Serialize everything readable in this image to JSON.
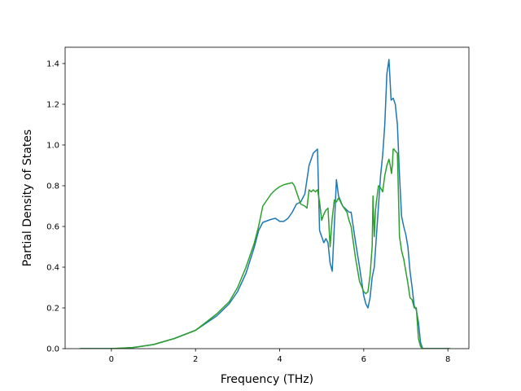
{
  "chart_data": {
    "type": "line",
    "title": "",
    "xlabel": "Frequency (THz)",
    "ylabel": "Partial Density of States",
    "xlim": [
      -1.1,
      8.5
    ],
    "ylim": [
      0.0,
      1.48
    ],
    "xticks": [
      0,
      2,
      4,
      6,
      8
    ],
    "xtick_labels": [
      "0",
      "2",
      "4",
      "6",
      "8"
    ],
    "yticks": [
      0.0,
      0.2,
      0.4,
      0.6,
      0.8,
      1.0,
      1.2,
      1.4
    ],
    "ytick_labels": [
      "0.0",
      "0.2",
      "0.4",
      "0.6",
      "0.8",
      "1.0",
      "1.2",
      "1.4"
    ],
    "grid": false,
    "legend": false,
    "series": [
      {
        "color": "#1f77b4",
        "x": [
          -0.75,
          0.0,
          0.5,
          1.0,
          1.5,
          2.0,
          2.5,
          2.8,
          3.0,
          3.2,
          3.4,
          3.5,
          3.6,
          3.8,
          3.9,
          4.0,
          4.1,
          4.2,
          4.3,
          4.4,
          4.5,
          4.6,
          4.7,
          4.8,
          4.85,
          4.9,
          4.95,
          5.0,
          5.05,
          5.1,
          5.15,
          5.2,
          5.25,
          5.3,
          5.35,
          5.4,
          5.5,
          5.6,
          5.65,
          5.7,
          5.8,
          5.9,
          6.0,
          6.05,
          6.1,
          6.15,
          6.2,
          6.25,
          6.3,
          6.35,
          6.4,
          6.45,
          6.5,
          6.55,
          6.6,
          6.65,
          6.7,
          6.75,
          6.8,
          6.85,
          6.9,
          6.95,
          7.0,
          7.05,
          7.1,
          7.15,
          7.2,
          7.25,
          7.3,
          7.35,
          7.4,
          7.5,
          8.05
        ],
        "y": [
          0.0,
          0.0,
          0.005,
          0.02,
          0.05,
          0.09,
          0.16,
          0.22,
          0.28,
          0.37,
          0.5,
          0.58,
          0.62,
          0.635,
          0.64,
          0.625,
          0.625,
          0.64,
          0.67,
          0.71,
          0.72,
          0.76,
          0.9,
          0.96,
          0.97,
          0.98,
          0.58,
          0.55,
          0.52,
          0.54,
          0.52,
          0.42,
          0.38,
          0.6,
          0.83,
          0.75,
          0.7,
          0.68,
          0.67,
          0.67,
          0.53,
          0.4,
          0.26,
          0.22,
          0.2,
          0.25,
          0.35,
          0.4,
          0.55,
          0.7,
          0.85,
          0.95,
          1.1,
          1.35,
          1.42,
          1.22,
          1.23,
          1.2,
          1.1,
          0.85,
          0.65,
          0.6,
          0.56,
          0.5,
          0.38,
          0.3,
          0.21,
          0.19,
          0.13,
          0.03,
          0.0,
          0.0,
          0.0
        ]
      },
      {
        "color": "#2ca02c",
        "x": [
          -0.75,
          0.0,
          0.5,
          1.0,
          1.5,
          2.0,
          2.5,
          2.8,
          3.0,
          3.2,
          3.4,
          3.5,
          3.6,
          3.7,
          3.8,
          3.9,
          4.0,
          4.1,
          4.2,
          4.3,
          4.35,
          4.4,
          4.5,
          4.6,
          4.65,
          4.7,
          4.75,
          4.8,
          4.85,
          4.9,
          4.95,
          5.0,
          5.05,
          5.1,
          5.15,
          5.2,
          5.25,
          5.3,
          5.35,
          5.4,
          5.5,
          5.6,
          5.65,
          5.7,
          5.8,
          5.9,
          6.0,
          6.05,
          6.1,
          6.15,
          6.2,
          6.22,
          6.25,
          6.28,
          6.3,
          6.35,
          6.4,
          6.45,
          6.5,
          6.55,
          6.6,
          6.63,
          6.66,
          6.68,
          6.7,
          6.72,
          6.75,
          6.8,
          6.85,
          6.9,
          6.95,
          7.0,
          7.05,
          7.1,
          7.15,
          7.2,
          7.25,
          7.3,
          7.35,
          7.4,
          7.5,
          8.05
        ],
        "y": [
          0.0,
          0.0,
          0.005,
          0.02,
          0.05,
          0.09,
          0.17,
          0.23,
          0.3,
          0.4,
          0.52,
          0.6,
          0.7,
          0.73,
          0.76,
          0.78,
          0.795,
          0.805,
          0.81,
          0.815,
          0.8,
          0.77,
          0.71,
          0.7,
          0.69,
          0.78,
          0.77,
          0.78,
          0.77,
          0.78,
          0.72,
          0.63,
          0.66,
          0.68,
          0.69,
          0.5,
          0.64,
          0.73,
          0.72,
          0.74,
          0.7,
          0.67,
          0.63,
          0.6,
          0.45,
          0.33,
          0.28,
          0.27,
          0.28,
          0.36,
          0.5,
          0.75,
          0.55,
          0.68,
          0.72,
          0.8,
          0.79,
          0.77,
          0.85,
          0.9,
          0.93,
          0.9,
          0.86,
          0.9,
          0.98,
          0.98,
          0.97,
          0.96,
          0.55,
          0.48,
          0.44,
          0.38,
          0.32,
          0.25,
          0.24,
          0.2,
          0.2,
          0.05,
          0.01,
          0.0,
          0.0,
          0.0
        ]
      }
    ]
  }
}
